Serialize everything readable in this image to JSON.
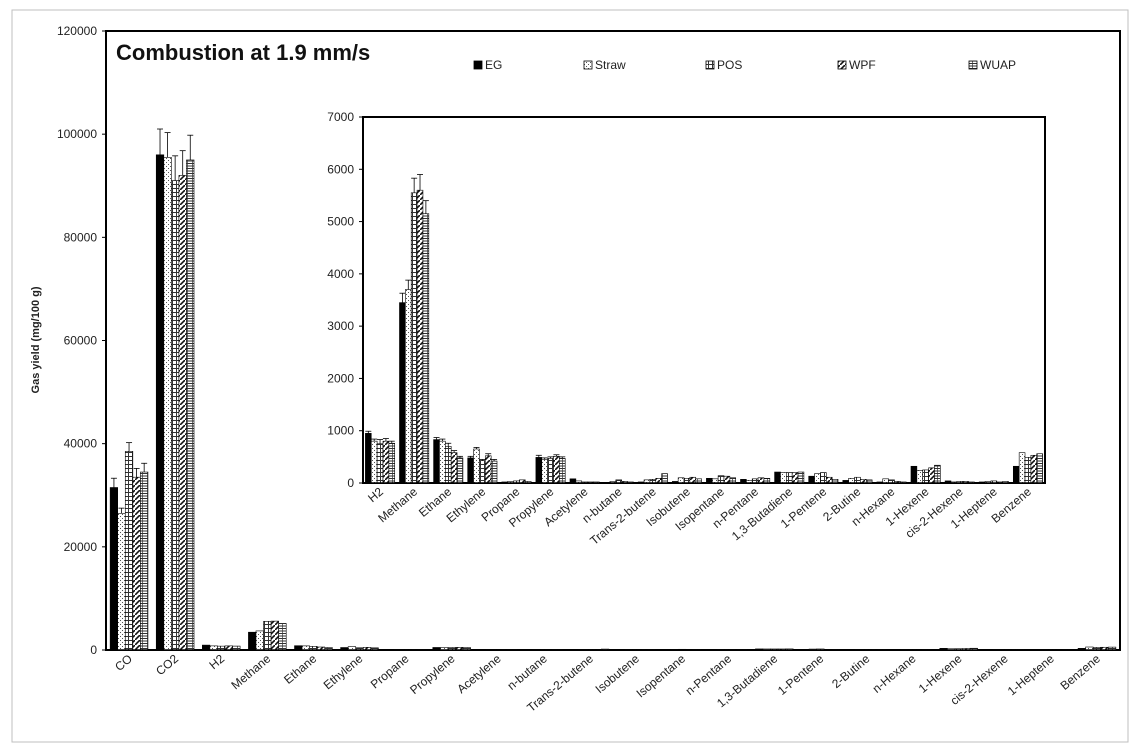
{
  "chart_data": [
    {
      "type": "bar",
      "title": "Combustion at 1.9 mm/s",
      "ylabel": "Gas yield (mg/100 g)",
      "ylim": [
        0,
        120000
      ],
      "yticks": [
        0,
        20000,
        40000,
        60000,
        80000,
        100000,
        120000
      ],
      "legend_placement": "top",
      "categories": [
        "CO",
        "CO2",
        "H2",
        "Methane",
        "Ethane",
        "Ethylene",
        "Propane",
        "Propylene",
        "Acetylene",
        "n-butane",
        "Trans-2-butene",
        "Isobutene",
        "Isopentane",
        "n-Pentane",
        "1,3-Butadiene",
        "1-Pentene",
        "2-Butine",
        "n-Hexane",
        "1-Hexene",
        "cis-2-Hexene",
        "1-Heptene",
        "Benzene"
      ],
      "series": [
        {
          "name": "EG",
          "values": [
            31500,
            96000,
            950,
            3450,
            830,
            480,
            20,
            490,
            80,
            10,
            20,
            30,
            90,
            70,
            210,
            130,
            50,
            20,
            320,
            40,
            20,
            320
          ]
        },
        {
          "name": "Straw",
          "values": [
            26500,
            95500,
            800,
            3700,
            800,
            650,
            30,
            450,
            40,
            30,
            60,
            100,
            80,
            50,
            200,
            180,
            90,
            80,
            240,
            20,
            30,
            580
          ]
        },
        {
          "name": "POS",
          "values": [
            38500,
            91000,
            750,
            5550,
            700,
            430,
            40,
            470,
            20,
            60,
            70,
            90,
            140,
            80,
            200,
            200,
            110,
            60,
            250,
            30,
            40,
            490
          ]
        },
        {
          "name": "WPF",
          "values": [
            33500,
            92000,
            800,
            5600,
            580,
            520,
            60,
            510,
            20,
            30,
            90,
            110,
            130,
            100,
            200,
            110,
            70,
            30,
            290,
            30,
            20,
            530
          ]
        },
        {
          "name": "WUAP",
          "values": [
            34500,
            95000,
            760,
            5150,
            480,
            420,
            30,
            470,
            20,
            20,
            180,
            80,
            100,
            90,
            210,
            70,
            60,
            20,
            340,
            20,
            30,
            560
          ]
        }
      ],
      "errors": [
        [
          1800,
          5000,
          0,
          0,
          0,
          0,
          0,
          0,
          0,
          0,
          0,
          0,
          0,
          0,
          0,
          0,
          0,
          0,
          0,
          0,
          0,
          0
        ],
        [
          1000,
          4800,
          0,
          0,
          0,
          0,
          0,
          0,
          0,
          0,
          0,
          0,
          0,
          0,
          0,
          0,
          0,
          0,
          0,
          0,
          0,
          0
        ],
        [
          1700,
          4800,
          0,
          0,
          0,
          0,
          0,
          0,
          0,
          0,
          0,
          0,
          0,
          0,
          0,
          0,
          0,
          0,
          0,
          0,
          0,
          0
        ],
        [
          1700,
          4800,
          0,
          0,
          0,
          0,
          0,
          0,
          0,
          0,
          0,
          0,
          0,
          0,
          0,
          0,
          0,
          0,
          0,
          0,
          0,
          0
        ],
        [
          1700,
          4800,
          0,
          0,
          0,
          0,
          0,
          0,
          0,
          0,
          0,
          0,
          0,
          0,
          0,
          0,
          0,
          0,
          0,
          0,
          0,
          0
        ]
      ]
    },
    {
      "type": "bar",
      "title": "",
      "ylabel": "",
      "ylim": [
        0,
        7000
      ],
      "yticks": [
        0,
        1000,
        2000,
        3000,
        4000,
        5000,
        6000,
        7000
      ],
      "categories": [
        "H2",
        "Methane",
        "Ethane",
        "Ethylene",
        "Propane",
        "Propylene",
        "Acetylene",
        "n-butane",
        "Trans-2-butene",
        "Isobutene",
        "Isopentane",
        "n-Pentane",
        "1,3-Butadiene",
        "1-Pentene",
        "2-Butine",
        "n-Hexane",
        "1-Hexene",
        "cis-2-Hexene",
        "1-Heptene",
        "Benzene"
      ],
      "series": [
        {
          "name": "EG",
          "values": [
            950,
            3450,
            830,
            480,
            20,
            490,
            80,
            10,
            20,
            30,
            90,
            70,
            210,
            130,
            50,
            20,
            320,
            40,
            20,
            320
          ]
        },
        {
          "name": "Straw",
          "values": [
            800,
            3700,
            800,
            650,
            30,
            450,
            40,
            30,
            60,
            100,
            80,
            50,
            200,
            180,
            90,
            80,
            240,
            20,
            30,
            580
          ]
        },
        {
          "name": "POS",
          "values": [
            750,
            5550,
            700,
            430,
            40,
            470,
            20,
            60,
            70,
            90,
            140,
            80,
            200,
            200,
            110,
            60,
            250,
            30,
            40,
            490
          ]
        },
        {
          "name": "WPF",
          "values": [
            800,
            5600,
            580,
            520,
            60,
            510,
            20,
            30,
            90,
            110,
            130,
            100,
            200,
            110,
            70,
            30,
            290,
            30,
            20,
            530
          ]
        },
        {
          "name": "WUAP",
          "values": [
            760,
            5150,
            480,
            420,
            30,
            470,
            20,
            20,
            180,
            80,
            100,
            90,
            210,
            70,
            60,
            20,
            340,
            20,
            30,
            560
          ]
        }
      ],
      "errors": [
        [
          40,
          180,
          40,
          30,
          0,
          40,
          0,
          0,
          0,
          0,
          0,
          0,
          0,
          0,
          0,
          0,
          0,
          0,
          0,
          0
        ],
        [
          40,
          180,
          40,
          30,
          0,
          30,
          0,
          0,
          0,
          0,
          0,
          0,
          0,
          0,
          0,
          0,
          0,
          0,
          0,
          0
        ],
        [
          80,
          280,
          60,
          20,
          0,
          30,
          0,
          0,
          0,
          0,
          0,
          0,
          0,
          0,
          0,
          0,
          0,
          0,
          0,
          0
        ],
        [
          50,
          300,
          40,
          40,
          0,
          30,
          0,
          0,
          0,
          0,
          0,
          0,
          0,
          0,
          0,
          0,
          0,
          0,
          0,
          0
        ],
        [
          40,
          250,
          30,
          30,
          0,
          30,
          0,
          0,
          0,
          0,
          0,
          0,
          0,
          0,
          0,
          0,
          0,
          0,
          0,
          0
        ]
      ]
    }
  ]
}
